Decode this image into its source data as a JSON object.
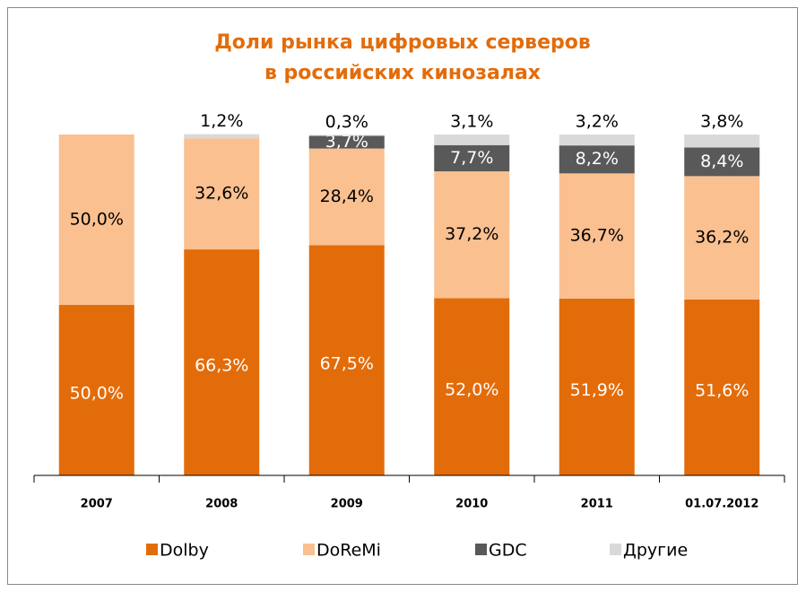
{
  "chart_data": {
    "type": "stacked_bar",
    "title": [
      "Доли рынка цифровых серверов",
      "в российских кинозалах"
    ],
    "categories": [
      "2007",
      "2008",
      "2009",
      "2010",
      "2011",
      "01.07.2012"
    ],
    "series": [
      {
        "name": "Dolby",
        "color": "#e36c0a",
        "values": [
          50.0,
          66.3,
          67.5,
          52.0,
          51.9,
          51.6
        ],
        "value_labels": [
          "50,0%",
          "66,3%",
          "67,5%",
          "52,0%",
          "51,9%",
          "51,6%"
        ]
      },
      {
        "name": "DoReMi",
        "color": "#fac090",
        "values": [
          50.0,
          32.6,
          28.4,
          37.2,
          36.7,
          36.2
        ],
        "value_labels": [
          "50,0%",
          "32,6%",
          "28,4%",
          "37,2%",
          "36,7%",
          "36,2%"
        ]
      },
      {
        "name": "GDC",
        "color": "#595959",
        "values": [
          null,
          null,
          3.7,
          7.7,
          8.2,
          8.4
        ],
        "value_labels": [
          null,
          null,
          "3,7%",
          "7,7%",
          "8,2%",
          "8,4%"
        ]
      },
      {
        "name": "Другие",
        "color": "#d9d9d9",
        "values": [
          null,
          1.2,
          0.3,
          3.1,
          3.2,
          3.8
        ],
        "value_labels": [
          null,
          "1,2%",
          "0,3%",
          "3,1%",
          "3,2%",
          "3,8%"
        ]
      }
    ],
    "ylim": [
      0,
      100
    ],
    "legend": "bottom"
  }
}
